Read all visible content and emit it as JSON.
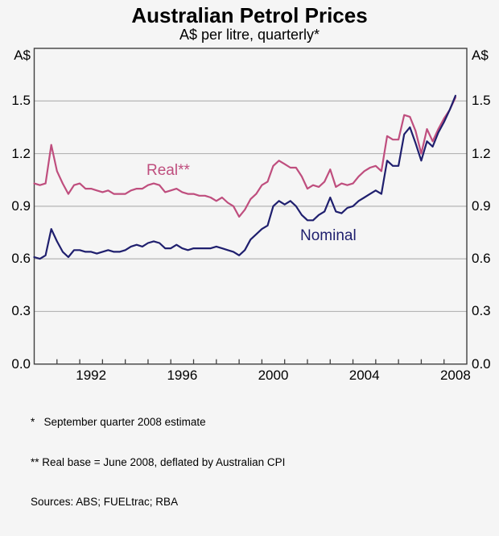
{
  "title": "Australian Petrol Prices",
  "subtitle": "A$ per litre, quarterly*",
  "axis": {
    "left_unit": "A$",
    "right_unit": "A$",
    "y_tick_labels": [
      "0.0",
      "0.3",
      "0.6",
      "0.9",
      "1.2",
      "1.5"
    ],
    "x_tick_labels": [
      "1992",
      "1996",
      "2000",
      "2004",
      "2008"
    ],
    "x_label_positions": [
      1992.5,
      1996.5,
      2000.5,
      2004.5,
      2008.5
    ],
    "year_tick_start": 1991,
    "year_tick_end": 2008
  },
  "series_labels": {
    "real": "Real**",
    "nominal": "Nominal"
  },
  "footnotes": [
    "*   September quarter 2008 estimate",
    "** Real base = June 2008, deflated by Australian CPI",
    "Sources: ABS; FUELtrac; RBA"
  ],
  "colors": {
    "real_line": "#bf4e7e",
    "nominal_line": "#1f1f6e",
    "gridline": "#b5b5b5",
    "frame": "#404040",
    "background": "#f5f5f5",
    "text": "#000000"
  },
  "chart_data": {
    "type": "line",
    "title": "Australian Petrol Prices",
    "subtitle": "A$ per litre, quarterly*",
    "ylabel": "A$ per litre",
    "ylim": [
      0,
      1.8
    ],
    "xlim": [
      1990,
      2009
    ],
    "yticks": [
      0,
      0.3,
      0.6,
      0.9,
      1.2,
      1.5
    ],
    "xticks_labeled": [
      1992,
      1996,
      2000,
      2004,
      2008
    ],
    "grid": true,
    "legend": "inline-labels",
    "x_start": 1990.0,
    "x_step": 0.25,
    "x_end": 2008.5,
    "frequency": "quarterly",
    "last_point_note": "September quarter 2008 estimate",
    "series": [
      {
        "name": "Real**",
        "color": "#bf4e7e",
        "values": [
          1.03,
          1.02,
          1.03,
          1.25,
          1.1,
          1.03,
          0.97,
          1.02,
          1.03,
          1.0,
          1.0,
          0.99,
          0.98,
          0.99,
          0.97,
          0.97,
          0.97,
          0.99,
          1.0,
          1.0,
          1.02,
          1.03,
          1.02,
          0.98,
          0.99,
          1.0,
          0.98,
          0.97,
          0.97,
          0.96,
          0.96,
          0.95,
          0.93,
          0.95,
          0.92,
          0.9,
          0.84,
          0.88,
          0.94,
          0.97,
          1.02,
          1.04,
          1.13,
          1.16,
          1.14,
          1.12,
          1.12,
          1.07,
          1.0,
          1.02,
          1.01,
          1.04,
          1.11,
          1.01,
          1.03,
          1.02,
          1.03,
          1.07,
          1.1,
          1.12,
          1.13,
          1.1,
          1.3,
          1.28,
          1.28,
          1.42,
          1.41,
          1.33,
          1.2,
          1.34,
          1.27,
          1.34,
          1.4,
          1.45,
          1.52
        ]
      },
      {
        "name": "Nominal",
        "color": "#1f1f6e",
        "values": [
          0.61,
          0.6,
          0.62,
          0.77,
          0.7,
          0.64,
          0.61,
          0.65,
          0.65,
          0.64,
          0.64,
          0.63,
          0.64,
          0.65,
          0.64,
          0.64,
          0.65,
          0.67,
          0.68,
          0.67,
          0.69,
          0.7,
          0.69,
          0.66,
          0.66,
          0.68,
          0.66,
          0.65,
          0.66,
          0.66,
          0.66,
          0.66,
          0.67,
          0.66,
          0.65,
          0.64,
          0.62,
          0.65,
          0.71,
          0.74,
          0.77,
          0.79,
          0.9,
          0.93,
          0.91,
          0.93,
          0.9,
          0.85,
          0.82,
          0.82,
          0.85,
          0.87,
          0.95,
          0.87,
          0.86,
          0.89,
          0.9,
          0.93,
          0.95,
          0.97,
          0.99,
          0.97,
          1.16,
          1.13,
          1.13,
          1.31,
          1.35,
          1.26,
          1.16,
          1.27,
          1.24,
          1.32,
          1.38,
          1.45,
          1.53
        ]
      }
    ]
  }
}
